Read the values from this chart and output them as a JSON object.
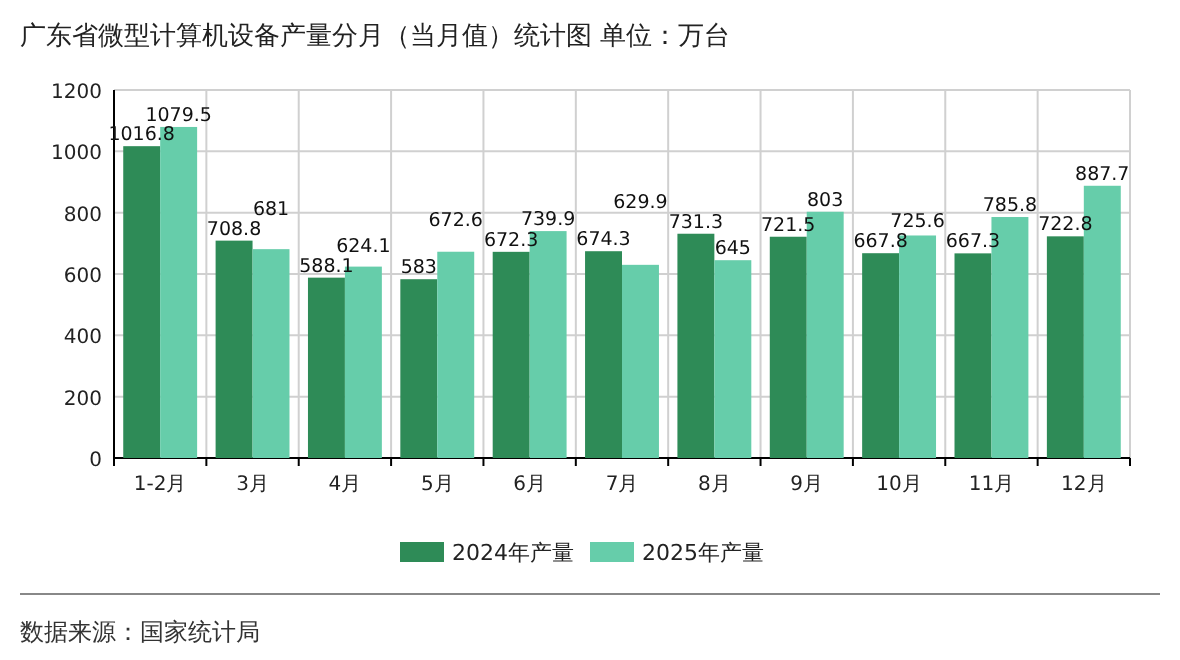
{
  "chart_data": {
    "type": "bar",
    "title": "广东省微型计算机设备产量分月（当月值）统计图 单位：万台",
    "categories": [
      "1-2月",
      "3月",
      "4月",
      "5月",
      "6月",
      "7月",
      "8月",
      "9月",
      "10月",
      "11月",
      "12月"
    ],
    "series": [
      {
        "name": "2024年产量",
        "color": "#2e8b57",
        "values": [
          1016.8,
          708.8,
          588.1,
          583,
          672.3,
          674.3,
          731.3,
          721.5,
          667.8,
          667.3,
          722.8
        ]
      },
      {
        "name": "2025年产量",
        "color": "#66cdaa",
        "values": [
          1079.5,
          681,
          624.1,
          672.6,
          739.9,
          629.9,
          645,
          803,
          725.6,
          785.8,
          887.7
        ]
      }
    ],
    "ylim": [
      0,
      1200
    ],
    "yticks": [
      0,
      200,
      400,
      600,
      800,
      1000,
      1200
    ],
    "grid": true,
    "legend": "bottom",
    "data_labels": true,
    "annotations": [
      "数据来源：国家统计局"
    ]
  }
}
